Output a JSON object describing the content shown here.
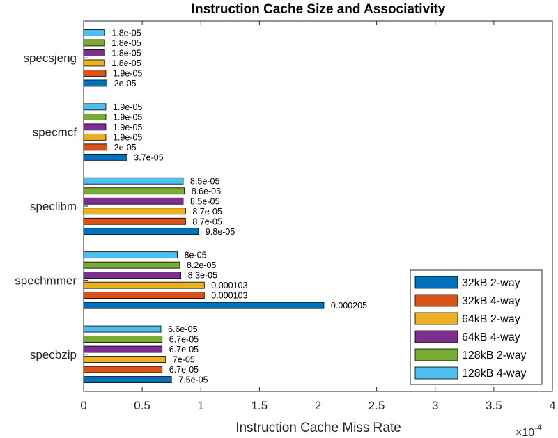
{
  "chart_data": {
    "type": "bar",
    "orientation": "horizontal",
    "title": "Instruction Cache Size and Associativity",
    "xlabel": "Instruction Cache Miss Rate",
    "ylabel": "",
    "xlim": [
      0,
      0.0004
    ],
    "x_tick_labels": [
      "0",
      "0.5",
      "1",
      "1.5",
      "2",
      "2.5",
      "3",
      "3.5",
      "4"
    ],
    "x_exponent_label": "×10",
    "x_exponent_power": "-4",
    "categories": [
      "specsjeng",
      "specmcf",
      "speclibm",
      "spechmmer",
      "specbzip"
    ],
    "legend_position": "bottom-right",
    "grid": false,
    "series": [
      {
        "name": "32kB 2-way",
        "color": "#0072BD",
        "values": [
          2e-05,
          3.7e-05,
          9.8e-05,
          0.000205,
          7.5e-05
        ],
        "labels": [
          "2e-05",
          "3.7e-05",
          "9.8e-05",
          "0.000205",
          "7.5e-05"
        ]
      },
      {
        "name": "32kB 4-way",
        "color": "#D95319",
        "values": [
          1.9e-05,
          2e-05,
          8.7e-05,
          0.000103,
          6.7e-05
        ],
        "labels": [
          "1.9e-05",
          "2e-05",
          "8.7e-05",
          "0.000103",
          "6.7e-05"
        ]
      },
      {
        "name": "64kB 2-way",
        "color": "#EDB120",
        "values": [
          1.8e-05,
          1.9e-05,
          8.7e-05,
          0.000103,
          7e-05
        ],
        "labels": [
          "1.8e-05",
          "1.9e-05",
          "8.7e-05",
          "0.000103",
          "7e-05"
        ]
      },
      {
        "name": "64kB 4-way",
        "color": "#7E2F8E",
        "values": [
          1.8e-05,
          1.9e-05,
          8.5e-05,
          8.3e-05,
          6.7e-05
        ],
        "labels": [
          "1.8e-05",
          "1.9e-05",
          "8.5e-05",
          "8.3e-05",
          "6.7e-05"
        ]
      },
      {
        "name": "128kB 2-way",
        "color": "#77AC30",
        "values": [
          1.8e-05,
          1.9e-05,
          8.6e-05,
          8.2e-05,
          6.7e-05
        ],
        "labels": [
          "1.8e-05",
          "1.9e-05",
          "8.6e-05",
          "8.2e-05",
          "6.7e-05"
        ]
      },
      {
        "name": "128kB 4-way",
        "color": "#4DBEEE",
        "values": [
          1.8e-05,
          1.9e-05,
          8.5e-05,
          8e-05,
          6.6e-05
        ],
        "labels": [
          "1.8e-05",
          "1.9e-05",
          "8.5e-05",
          "8e-05",
          "6.6e-05"
        ]
      }
    ]
  }
}
